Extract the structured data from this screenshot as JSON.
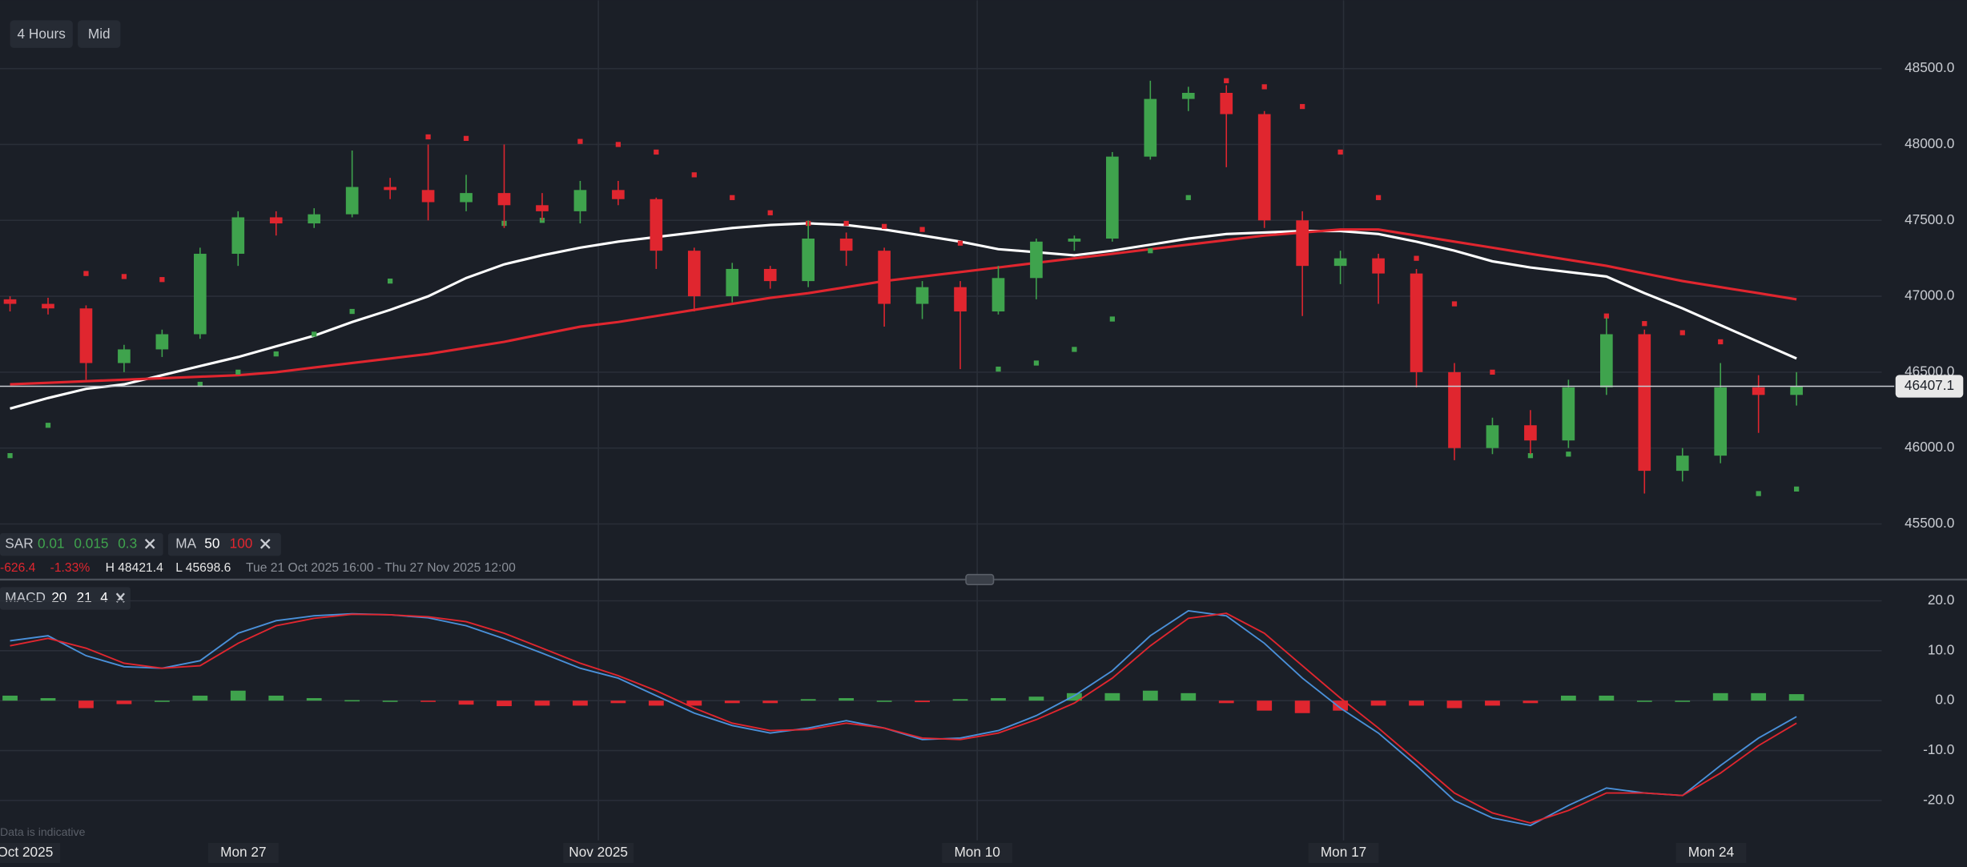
{
  "toolbar": {
    "interval": "4 Hours",
    "price_type": "Mid"
  },
  "chart_data": [
    {
      "type": "candlestick",
      "ylim": [
        45150,
        48950
      ],
      "yticks": [
        {
          "value": 45500,
          "label": "45500.0"
        },
        {
          "value": 46000,
          "label": "46000.0"
        },
        {
          "value": 46500,
          "label": "46500.0"
        },
        {
          "value": 47000,
          "label": "47000.0"
        },
        {
          "value": 47500,
          "label": "47500.0"
        },
        {
          "value": 48000,
          "label": "48000.0"
        },
        {
          "value": 48500,
          "label": "48500.0"
        }
      ],
      "grid": true,
      "up_color": "#3fa34d",
      "down_color": "#e0262f",
      "last_price": 46407.1,
      "open": [
        46980,
        46950,
        46920,
        46560,
        46650,
        46750,
        47280,
        47520,
        47480,
        47540,
        47720,
        47700,
        47620,
        47680,
        47600,
        47560,
        47700,
        47640,
        47300,
        47000,
        47180,
        47100,
        47380,
        47300,
        46950,
        47060,
        46900,
        47120,
        47360,
        47380,
        47920,
        48300,
        48340,
        48200,
        47500,
        47200,
        47250,
        47150,
        46500,
        46000,
        46150,
        46050,
        46400,
        46750,
        45850,
        45950,
        46400,
        46350
      ],
      "high": [
        47000,
        46990,
        46940,
        46680,
        46780,
        47320,
        47560,
        47560,
        47580,
        47960,
        47780,
        48000,
        47800,
        48000,
        47680,
        47760,
        47760,
        47650,
        47320,
        47220,
        47200,
        47500,
        47420,
        47320,
        47100,
        47100,
        47200,
        47380,
        47400,
        47950,
        48420,
        48380,
        48390,
        48220,
        47560,
        47300,
        47280,
        47180,
        46560,
        46200,
        46250,
        46450,
        46860,
        46780,
        46000,
        46560,
        46480,
        46500
      ],
      "low": [
        46900,
        46880,
        46450,
        46500,
        46600,
        46720,
        47200,
        47400,
        47450,
        47520,
        47640,
        47500,
        47560,
        47450,
        47500,
        47480,
        47600,
        47180,
        46900,
        46960,
        47050,
        47060,
        47200,
        46800,
        46850,
        46520,
        46880,
        46980,
        47300,
        47360,
        47900,
        48220,
        47850,
        47450,
        46870,
        47080,
        46950,
        46400,
        45920,
        45960,
        45960,
        46000,
        46350,
        45700,
        45780,
        45900,
        46100,
        46280
      ],
      "close": [
        46950,
        46920,
        46560,
        46650,
        46750,
        47280,
        47520,
        47480,
        47540,
        47720,
        47700,
        47620,
        47680,
        47600,
        47560,
        47700,
        47640,
        47300,
        47000,
        47180,
        47100,
        47380,
        47300,
        46950,
        47060,
        46900,
        47120,
        47360,
        47380,
        47920,
        48300,
        48340,
        48200,
        47500,
        47200,
        47250,
        47150,
        46500,
        46000,
        46150,
        46050,
        46400,
        46750,
        45850,
        45950,
        46400,
        46350,
        46407.1
      ],
      "indicators": {
        "sar": {
          "label": "SAR",
          "params": [
            0.01,
            0.015,
            0.3
          ],
          "values": [
            45950,
            46150,
            47150,
            47130,
            47110,
            46420,
            46500,
            46620,
            46750,
            46900,
            47100,
            48050,
            48040,
            47480,
            47500,
            48020,
            48000,
            47950,
            47800,
            47650,
            47550,
            47480,
            47480,
            47460,
            47440,
            47350,
            46520,
            46560,
            46650,
            46850,
            47300,
            47650,
            48420,
            48380,
            48250,
            47950,
            47650,
            47250,
            46950,
            46500,
            45950,
            45960,
            46870,
            46820,
            46760,
            46700,
            45700,
            45730
          ]
        },
        "ma": {
          "label": "MA",
          "periods": [
            50,
            100
          ],
          "colors": [
            "#ffffff",
            "#e0262f"
          ],
          "values": [
            [
              46260,
              46330,
              46390,
              46420,
              46480,
              46540,
              46600,
              46670,
              46740,
              46830,
              46910,
              47000,
              47120,
              47210,
              47270,
              47320,
              47360,
              47390,
              47420,
              47450,
              47470,
              47480,
              47470,
              47440,
              47400,
              47360,
              47310,
              47290,
              47270,
              47300,
              47340,
              47380,
              47410,
              47420,
              47430,
              47430,
              47410,
              47360,
              47300,
              47230,
              47190,
              47160,
              47130,
              47020,
              46920,
              46810,
              46700,
              46590
            ],
            [
              46420,
              46430,
              46440,
              46450,
              46460,
              46470,
              46480,
              46500,
              46530,
              46560,
              46590,
              46620,
              46660,
              46700,
              46750,
              46800,
              46830,
              46870,
              46910,
              46950,
              46990,
              47020,
              47060,
              47100,
              47130,
              47160,
              47190,
              47220,
              47250,
              47280,
              47310,
              47340,
              47370,
              47400,
              47420,
              47440,
              47440,
              47400,
              47360,
              47320,
              47280,
              47240,
              47200,
              47150,
              47100,
              47060,
              47020,
              46980
            ]
          ]
        }
      },
      "info": {
        "change": -626.4,
        "change_pct": "-1.33%",
        "high": "H 48421.4",
        "low": "L 45698.6",
        "range": "Tue 21 Oct 2025 16:00 - Thu 27 Nov 2025 12:00"
      },
      "x_labels": [
        "Oct 2025",
        "Mon 27",
        "Nov 2025",
        "Mon 10",
        "Mon 17",
        "Mon 24"
      ]
    },
    {
      "type": "macd",
      "label": "MACD",
      "params": [
        20,
        21,
        4
      ],
      "ylim": [
        -28,
        24
      ],
      "yticks": [
        {
          "value": 20,
          "label": "20.0"
        },
        {
          "value": 10,
          "label": "10.0"
        },
        {
          "value": 0,
          "label": "0.0"
        },
        {
          "value": -10,
          "label": "-10.0"
        },
        {
          "value": -20,
          "label": "-20.0"
        }
      ],
      "grid": true,
      "series": [
        {
          "name": "MACD",
          "color": "#4a90d9",
          "values": [
            12,
            13,
            9,
            6.8,
            6.5,
            8,
            13.5,
            16,
            17,
            17.4,
            17.2,
            16.6,
            15,
            12.4,
            9.5,
            6.5,
            4.5,
            1,
            -2.5,
            -5,
            -6.5,
            -5.5,
            -4,
            -5.5,
            -7.8,
            -7.5,
            -6,
            -3,
            1,
            6,
            13,
            18,
            17,
            11.5,
            4.5,
            -1.5,
            -6.5,
            -13,
            -20,
            -23.5,
            -25,
            -21,
            -17.5,
            -18.5,
            -19,
            -13,
            -7.5,
            -3.2
          ]
        },
        {
          "name": "Signal",
          "color": "#e0262f",
          "values": [
            11,
            12.5,
            10.5,
            7.5,
            6.5,
            7,
            11.5,
            15,
            16.5,
            17.3,
            17.2,
            16.8,
            15.8,
            13.5,
            10.5,
            7.5,
            5,
            2,
            -1.5,
            -4.5,
            -6,
            -5.8,
            -4.5,
            -5.5,
            -7.5,
            -7.8,
            -6.5,
            -3.8,
            -0.5,
            4.5,
            11,
            16.5,
            17.5,
            13.5,
            7,
            0.5,
            -5.5,
            -12,
            -18.5,
            -22.5,
            -24.5,
            -22,
            -18.5,
            -18.5,
            -19,
            -14.5,
            -9,
            -4.5
          ]
        }
      ],
      "histogram": [
        1,
        0.5,
        -1.5,
        -0.7,
        0,
        1,
        2,
        1,
        0.5,
        0.1,
        0,
        -0.2,
        -0.8,
        -1.1,
        -1,
        -1,
        -0.5,
        -1,
        -1,
        -0.5,
        -0.5,
        0.3,
        0.5,
        0,
        -0.3,
        0.3,
        0.5,
        0.8,
        1.5,
        1.5,
        2,
        1.5,
        -0.5,
        -2,
        -2.5,
        -2,
        -1,
        -1,
        -1.5,
        -1,
        -0.5,
        1,
        1,
        0,
        0,
        1.5,
        1.5,
        1.3
      ],
      "note": "Data is indicative"
    }
  ]
}
